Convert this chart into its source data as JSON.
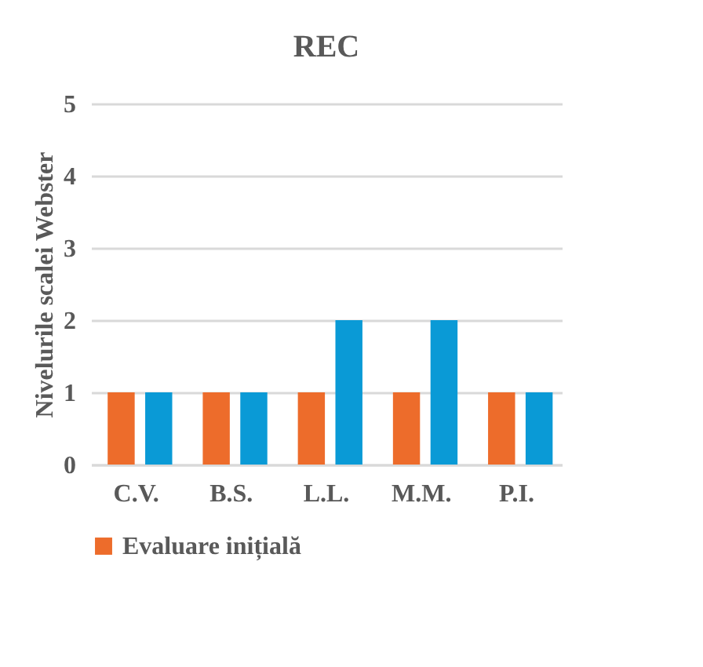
{
  "chart_data": {
    "type": "bar",
    "title": "REC",
    "ylabel": "Nivelurile scalei Webster",
    "categories": [
      "C.V.",
      "B.S.",
      "L.L.",
      "M.M.",
      "P.I."
    ],
    "series": [
      {
        "name": "Evaluare inițială",
        "color": "#ed6c2b",
        "values": [
          1,
          1,
          1,
          1,
          1
        ]
      },
      {
        "color": "#0a9ad6",
        "values": [
          1,
          1,
          2,
          2,
          1
        ]
      }
    ],
    "ylim": [
      0,
      5
    ],
    "yticks": [
      0,
      1,
      2,
      3,
      4,
      5
    ],
    "grid": "y",
    "legend": "bottom"
  }
}
